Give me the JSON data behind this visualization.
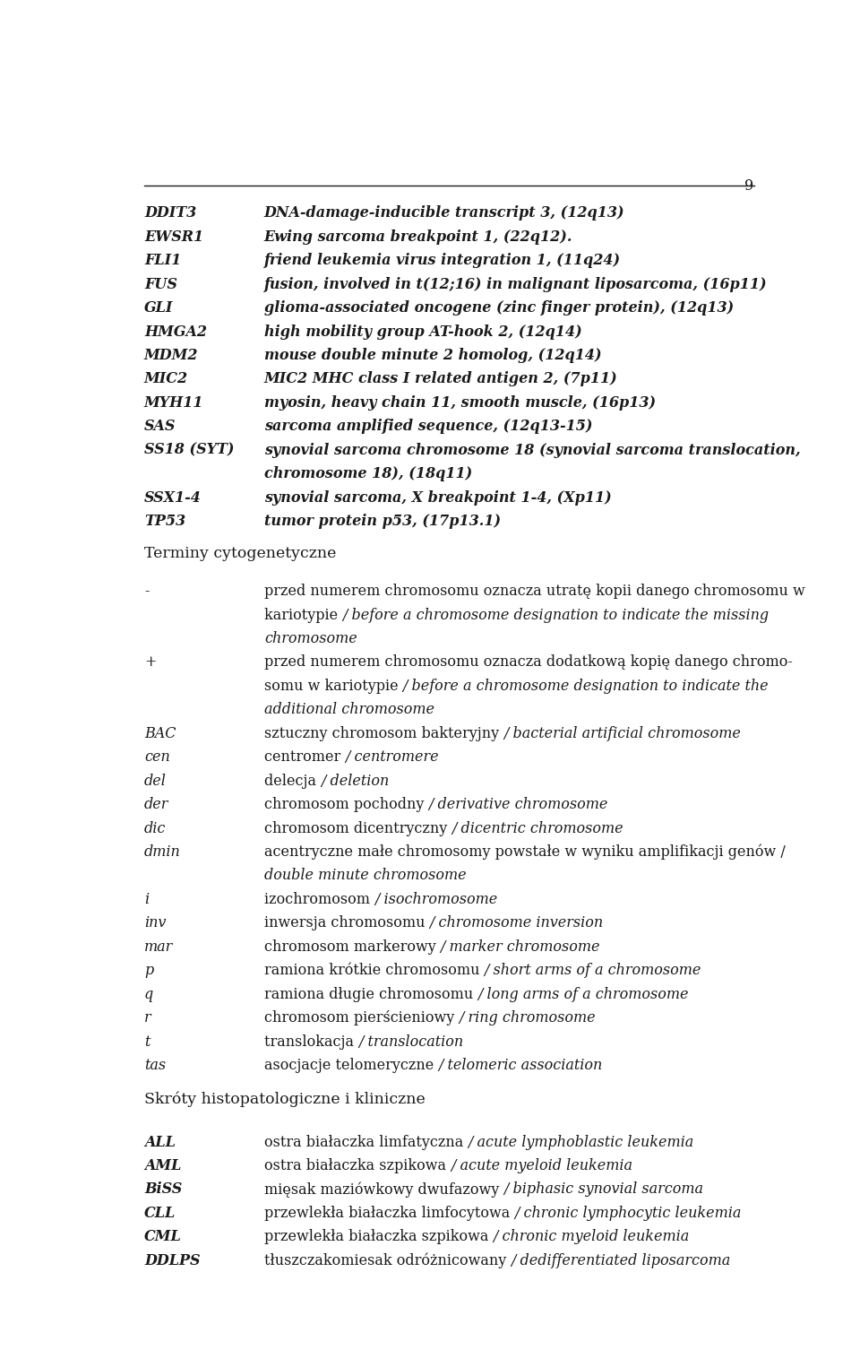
{
  "page_number": "9",
  "bg_color": "#ffffff",
  "text_color": "#1a1a1a",
  "figsize": [
    9.6,
    15.06
  ],
  "dpi": 100,
  "font_size": 11.5,
  "section1_entries": [
    [
      "DDIT3",
      "DNA-damage-inducible transcript 3, (12q13)"
    ],
    [
      "EWSR1",
      "Ewing sarcoma breakpoint 1, (22q12)."
    ],
    [
      "FLI1",
      "friend leukemia virus integration 1, (11q24)"
    ],
    [
      "FUS",
      "fusion, involved in t(12;16) in malignant liposarcoma, (16p11)"
    ],
    [
      "GLI",
      "glioma-associated oncogene (zinc finger protein), (12q13)"
    ],
    [
      "HMGA2",
      "high mobility group AT-hook 2, (12q14)"
    ],
    [
      "MDM2",
      "mouse double minute 2 homolog, (12q14)"
    ],
    [
      "MIC2",
      "MIC2 MHC class I related antigen 2, (7p11)"
    ],
    [
      "MYH11",
      "myosin, heavy chain 11, smooth muscle, (16p13)"
    ],
    [
      "SAS",
      "sarcoma amplified sequence, (12q13-15)"
    ],
    [
      "SS18 (SYT)",
      "synovial sarcoma chromosome 18 (synovial sarcoma translocation,\nchromosome 18), (18q11)"
    ],
    [
      "SSX1-4",
      "synovial sarcoma, X breakpoint 1-4, (Xp11)"
    ],
    [
      "TP53",
      "tumor protein p53, (17p13.1)"
    ]
  ],
  "section2_title": "Terminy cytogenetyczne",
  "section2_entries": [
    [
      "-",
      [
        [
          "normal",
          "przed numerem chromosomu oznacza utratę kopii danego chromosomu w"
        ],
        [
          "normal",
          "kariotypie "
        ],
        [
          "italic",
          "/ before a chromosome designation to indicate the missing"
        ],
        [
          "italic",
          "chromosome"
        ]
      ]
    ],
    [
      "+",
      [
        [
          "normal",
          "przed numerem chromosomu oznacza dodatkową kopię danego chromo-"
        ],
        [
          "normal",
          "somu w kariotypie "
        ],
        [
          "italic",
          "/ before a chromosome designation to indicate the"
        ],
        [
          "italic",
          "additional chromosome"
        ]
      ]
    ],
    [
      "BAC",
      [
        [
          "normal",
          "sztuczny chromosom bakteryjny "
        ],
        [
          "italic",
          "/ bacterial artificial chromosome"
        ]
      ]
    ],
    [
      "cen",
      [
        [
          "normal",
          "centromer "
        ],
        [
          "italic",
          "/ centromere"
        ]
      ]
    ],
    [
      "del",
      [
        [
          "normal",
          "delecja "
        ],
        [
          "italic",
          "/ deletion"
        ]
      ]
    ],
    [
      "der",
      [
        [
          "normal",
          "chromosom pochodny "
        ],
        [
          "italic",
          "/ derivative chromosome"
        ]
      ]
    ],
    [
      "dic",
      [
        [
          "normal",
          "chromosom dicentryczny "
        ],
        [
          "italic",
          "/ dicentric chromosome"
        ]
      ]
    ],
    [
      "dmin",
      [
        [
          "normal",
          "acentryczne małe chromosomy powstałe w wyniku amplifikacji genów "
        ],
        [
          "italic",
          "/ "
        ],
        [
          "italic",
          "double minute chromosome"
        ]
      ]
    ],
    [
      "i",
      [
        [
          "normal",
          "izochromosom "
        ],
        [
          "italic",
          "/ isochromosome"
        ]
      ]
    ],
    [
      "inv",
      [
        [
          "normal",
          "inwersja chromosomu "
        ],
        [
          "italic",
          "/ chromosome inversion"
        ]
      ]
    ],
    [
      "mar",
      [
        [
          "normal",
          "chromosom markerowy "
        ],
        [
          "italic",
          "/ marker chromosome"
        ]
      ]
    ],
    [
      "p",
      [
        [
          "normal",
          "ramiona krótkie chromosomu "
        ],
        [
          "italic",
          "/ short arms of a chromosome"
        ]
      ]
    ],
    [
      "q",
      [
        [
          "normal",
          "ramiona długie chromosomu "
        ],
        [
          "italic",
          "/ long arms of a chromosome"
        ]
      ]
    ],
    [
      "r",
      [
        [
          "normal",
          "chromosom pierścieniowy "
        ],
        [
          "italic",
          "/ ring chromosome"
        ]
      ]
    ],
    [
      "t",
      [
        [
          "normal",
          "translokacja "
        ],
        [
          "italic",
          "/ translocation"
        ]
      ]
    ],
    [
      "tas",
      [
        [
          "normal",
          "asocjacje telomeryczne "
        ],
        [
          "italic",
          "/ telomeric association"
        ]
      ]
    ]
  ],
  "section3_title": "Skróty histopatologiczne i kliniczne",
  "section3_entries": [
    [
      "ALL",
      [
        [
          "normal",
          "ostra białaczka limfatyczna "
        ],
        [
          "italic",
          "/ acute lymphoblastic leukemia"
        ]
      ]
    ],
    [
      "AML",
      [
        [
          "normal",
          "ostra białaczka szpikowa "
        ],
        [
          "italic",
          "/ acute myeloid leukemia"
        ]
      ]
    ],
    [
      "BiSS",
      [
        [
          "normal",
          "mięsak maziówkowy dwufazowy "
        ],
        [
          "italic",
          "/ biphasic synovial sarcoma"
        ]
      ]
    ],
    [
      "CLL",
      [
        [
          "normal",
          "przewlekła białaczka limfocytowa "
        ],
        [
          "italic",
          "/ chronic lymphocytic leukemia"
        ]
      ]
    ],
    [
      "CML",
      [
        [
          "normal",
          "przewlekła białaczka szpikowa "
        ],
        [
          "italic",
          "/ chronic myeloid leukemia"
        ]
      ]
    ],
    [
      "DDLPS",
      [
        [
          "normal",
          "tłuszczakomiesak odróżnicowany "
        ],
        [
          "italic",
          "/ dedifferentiated liposarcoma"
        ]
      ]
    ]
  ]
}
